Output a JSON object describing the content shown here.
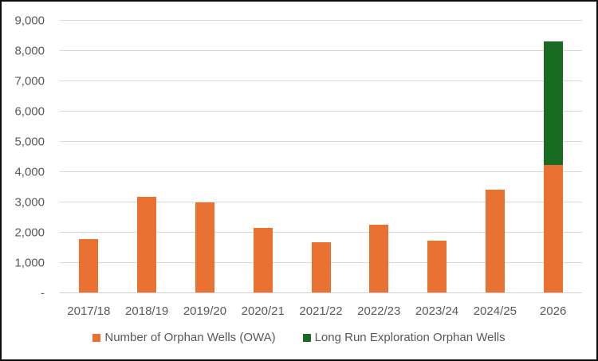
{
  "chart_data": {
    "type": "bar",
    "stacked": true,
    "title": "",
    "xlabel": "",
    "ylabel": "",
    "categories": [
      "2017/18",
      "2018/19",
      "2019/20",
      "2020/21",
      "2021/22",
      "2022/23",
      "2023/24",
      "2024/25",
      "2026"
    ],
    "series": [
      {
        "name": "Number of Orphan Wells (OWA)",
        "color": "#E97132",
        "values": [
          1770,
          3150,
          2980,
          2120,
          1670,
          2250,
          1715,
          3400,
          4200
        ]
      },
      {
        "name": "Long Run Exploration Orphan Wells",
        "color": "#196B24",
        "values": [
          0,
          0,
          0,
          0,
          0,
          0,
          0,
          0,
          4100
        ]
      }
    ],
    "ylim": [
      0,
      9000
    ],
    "ytick_interval": 1000,
    "ytick_labels": [
      "-",
      "1,000",
      "2,000",
      "3,000",
      "4,000",
      "5,000",
      "6,000",
      "7,000",
      "8,000",
      "9,000"
    ],
    "grid": true,
    "legend_position": "bottom"
  },
  "colors": {
    "accent_orange": "#E97132",
    "accent_green": "#196B24",
    "text_gray": "#595959",
    "gridline": "#D9D9D9",
    "frame_border": "#0D0D0D",
    "background": "#FFFFFF"
  }
}
